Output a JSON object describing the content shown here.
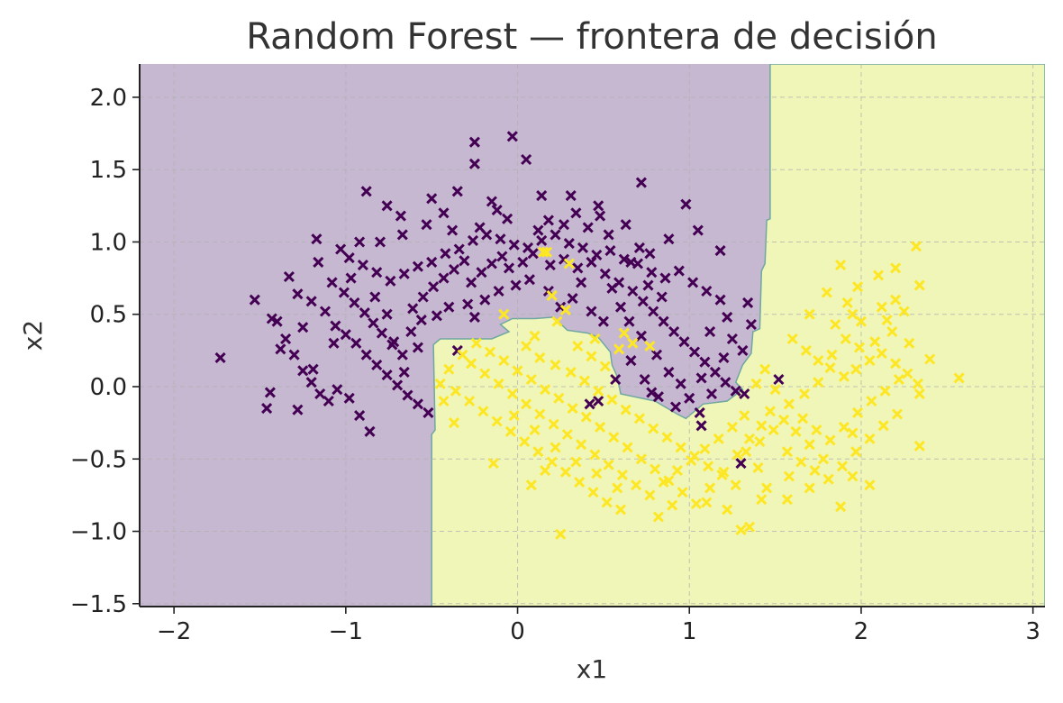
{
  "chart_data": {
    "type": "scatter",
    "title": "Random Forest — frontera de decisión",
    "xlabel": "x1",
    "ylabel": "x2",
    "xlim": [
      -2.2,
      3.07
    ],
    "ylim": [
      -1.52,
      2.23
    ],
    "xticks": [
      -2,
      -1,
      0,
      1,
      2,
      3
    ],
    "yticks": [
      -1.5,
      -1.0,
      -0.5,
      0.0,
      0.5,
      1.0,
      1.5,
      2.0
    ],
    "xtick_labels": [
      "−2",
      "−1",
      "0",
      "1",
      "2",
      "3"
    ],
    "ytick_labels": [
      "−1.5",
      "−1.0",
      "−0.5",
      "0.0",
      "0.5",
      "1.0",
      "1.5",
      "2.0"
    ],
    "grid": true,
    "marker": "x",
    "class_colors": [
      "#440154",
      "#fde725"
    ],
    "region_colors": [
      "#c7b8d1",
      "#f0f6b8"
    ],
    "boundary_color": "#6fa8a0",
    "decision_region_class1": [
      [
        1.47,
        2.23
      ],
      [
        1.47,
        1.16
      ],
      [
        1.45,
        1.15
      ],
      [
        1.44,
        0.85
      ],
      [
        1.42,
        0.8
      ],
      [
        1.41,
        0.4
      ],
      [
        1.37,
        0.38
      ],
      [
        1.36,
        0.23
      ],
      [
        1.31,
        0.15
      ],
      [
        1.27,
        0.03
      ],
      [
        1.31,
        -0.02
      ],
      [
        1.22,
        -0.1
      ],
      [
        1.08,
        -0.12
      ],
      [
        0.98,
        -0.22
      ],
      [
        0.93,
        -0.19
      ],
      [
        0.8,
        -0.1
      ],
      [
        0.6,
        -0.05
      ],
      [
        0.58,
        0.07
      ],
      [
        0.55,
        0.15
      ],
      [
        0.54,
        0.24
      ],
      [
        0.47,
        0.34
      ],
      [
        0.41,
        0.37
      ],
      [
        0.29,
        0.39
      ],
      [
        0.21,
        0.48
      ],
      [
        0.1,
        0.47
      ],
      [
        -0.03,
        0.47
      ],
      [
        -0.1,
        0.43
      ],
      [
        -0.05,
        0.38
      ],
      [
        -0.15,
        0.33
      ],
      [
        -0.45,
        0.33
      ],
      [
        -0.49,
        0.29
      ],
      [
        -0.48,
        -0.3
      ],
      [
        -0.5,
        -0.33
      ],
      [
        -0.5,
        -1.52
      ],
      [
        3.07,
        -1.52
      ],
      [
        3.07,
        2.23
      ]
    ],
    "class0_points": [
      [
        -0.25,
        1.69
      ],
      [
        -0.03,
        1.73
      ],
      [
        -0.25,
        1.54
      ],
      [
        0.05,
        1.57
      ],
      [
        0.72,
        1.41
      ],
      [
        -0.88,
        1.35
      ],
      [
        0.14,
        1.32
      ],
      [
        0.31,
        1.32
      ],
      [
        0.98,
        1.26
      ],
      [
        -0.35,
        1.35
      ],
      [
        -0.5,
        1.3
      ],
      [
        -0.76,
        1.25
      ],
      [
        -0.12,
        1.22
      ],
      [
        0.47,
        1.25
      ],
      [
        -1.17,
        1.02
      ],
      [
        -1.16,
        0.86
      ],
      [
        -1.03,
        0.95
      ],
      [
        -0.98,
        0.89
      ],
      [
        -0.9,
        0.84
      ],
      [
        -0.82,
        0.79
      ],
      [
        -0.74,
        0.73
      ],
      [
        -0.66,
        0.78
      ],
      [
        -0.58,
        0.83
      ],
      [
        -0.5,
        0.86
      ],
      [
        -0.42,
        0.92
      ],
      [
        -0.34,
        0.95
      ],
      [
        -0.26,
        1.01
      ],
      [
        -0.18,
        1.05
      ],
      [
        -0.1,
        1.02
      ],
      [
        -0.02,
        0.98
      ],
      [
        0.06,
        0.96
      ],
      [
        0.14,
        1.01
      ],
      [
        0.22,
        1.05
      ],
      [
        0.3,
        0.99
      ],
      [
        0.38,
        0.96
      ],
      [
        0.46,
        0.91
      ],
      [
        0.54,
        0.94
      ],
      [
        0.62,
        0.88
      ],
      [
        0.7,
        0.85
      ],
      [
        0.78,
        0.79
      ],
      [
        0.86,
        0.75
      ],
      [
        0.94,
        0.8
      ],
      [
        1.02,
        0.72
      ],
      [
        1.1,
        0.66
      ],
      [
        1.18,
        0.6
      ],
      [
        -1.33,
        0.76
      ],
      [
        -1.28,
        0.64
      ],
      [
        -1.2,
        0.59
      ],
      [
        -1.12,
        0.52
      ],
      [
        -1.06,
        0.42
      ],
      [
        -1.0,
        0.36
      ],
      [
        -0.94,
        0.3
      ],
      [
        -0.88,
        0.22
      ],
      [
        -0.82,
        0.15
      ],
      [
        -0.76,
        0.08
      ],
      [
        -0.7,
        0.01
      ],
      [
        -0.64,
        -0.06
      ],
      [
        -0.58,
        -0.12
      ],
      [
        -0.52,
        -0.18
      ],
      [
        -1.4,
        0.45
      ],
      [
        -1.35,
        0.33
      ],
      [
        -1.3,
        0.22
      ],
      [
        -1.25,
        0.11
      ],
      [
        -1.2,
        0.03
      ],
      [
        -1.15,
        -0.05
      ],
      [
        -1.1,
        -0.1
      ],
      [
        -1.05,
        -0.02
      ],
      [
        -0.98,
        -0.08
      ],
      [
        -0.92,
        -0.2
      ],
      [
        -0.86,
        -0.31
      ],
      [
        -1.44,
        -0.04
      ],
      [
        -1.46,
        -0.15
      ],
      [
        -1.28,
        -0.16
      ],
      [
        -1.73,
        0.2
      ],
      [
        -1.53,
        0.6
      ],
      [
        -1.43,
        0.47
      ],
      [
        -1.38,
        0.26
      ],
      [
        -1.25,
        0.41
      ],
      [
        -1.19,
        0.12
      ],
      [
        -1.08,
        0.72
      ],
      [
        -1.01,
        0.65
      ],
      [
        -0.95,
        0.58
      ],
      [
        -0.89,
        0.51
      ],
      [
        -0.84,
        0.44
      ],
      [
        -0.79,
        0.37
      ],
      [
        -0.73,
        0.29
      ],
      [
        -0.67,
        0.22
      ],
      [
        -0.61,
        0.54
      ],
      [
        -0.55,
        0.62
      ],
      [
        -0.49,
        0.69
      ],
      [
        -0.43,
        0.75
      ],
      [
        -0.37,
        0.81
      ],
      [
        -0.31,
        0.87
      ],
      [
        -0.27,
        0.72
      ],
      [
        -0.21,
        0.79
      ],
      [
        -0.15,
        0.85
      ],
      [
        -0.09,
        0.9
      ],
      [
        -0.05,
        0.82
      ],
      [
        0.03,
        0.86
      ],
      [
        0.09,
        0.92
      ],
      [
        0.19,
        0.84
      ],
      [
        0.27,
        0.88
      ],
      [
        0.35,
        0.82
      ],
      [
        0.43,
        0.86
      ],
      [
        0.51,
        0.78
      ],
      [
        0.59,
        0.72
      ],
      [
        0.67,
        0.66
      ],
      [
        0.73,
        0.59
      ],
      [
        0.79,
        0.52
      ],
      [
        0.85,
        0.45
      ],
      [
        0.91,
        0.38
      ],
      [
        0.97,
        0.31
      ],
      [
        1.03,
        0.24
      ],
      [
        1.09,
        0.17
      ],
      [
        1.15,
        0.1
      ],
      [
        1.21,
        0.03
      ],
      [
        1.27,
        -0.03
      ],
      [
        1.32,
        -0.05
      ],
      [
        1.25,
        0.33
      ],
      [
        1.31,
        0.25
      ],
      [
        1.36,
        0.43
      ],
      [
        1.34,
        0.58
      ],
      [
        1.18,
        0.94
      ],
      [
        1.05,
        1.08
      ],
      [
        0.88,
        1.02
      ],
      [
        0.63,
        1.12
      ],
      [
        0.48,
        1.18
      ],
      [
        0.34,
        1.2
      ],
      [
        0.18,
        1.15
      ],
      [
        -0.06,
        1.16
      ],
      [
        -0.22,
        1.1
      ],
      [
        -0.38,
        1.08
      ],
      [
        -0.53,
        1.12
      ],
      [
        -0.67,
        1.05
      ],
      [
        -0.8,
        1.0
      ],
      [
        -0.92,
        1.0
      ],
      [
        -0.62,
        0.38
      ],
      [
        -0.58,
        0.27
      ],
      [
        -0.66,
        0.1
      ],
      [
        -0.72,
        0.31
      ],
      [
        -0.83,
        0.62
      ],
      [
        -0.76,
        0.5
      ],
      [
        0.65,
        0.45
      ],
      [
        0.72,
        0.35
      ],
      [
        0.81,
        0.22
      ],
      [
        0.88,
        0.1
      ],
      [
        0.95,
        0.02
      ],
      [
        1.0,
        -0.08
      ],
      [
        1.06,
        -0.18
      ],
      [
        0.92,
        -0.14
      ],
      [
        0.82,
        -0.07
      ],
      [
        0.42,
        -0.12
      ],
      [
        0.47,
        -0.1
      ],
      [
        0.57,
        0.05
      ],
      [
        0.66,
        0.18
      ],
      [
        0.74,
        0.05
      ],
      [
        0.78,
        -0.04
      ],
      [
        1.13,
        -0.05
      ],
      [
        1.07,
        0.06
      ],
      [
        1.3,
        -0.53
      ],
      [
        1.07,
        -0.27
      ],
      [
        1.52,
        0.05
      ],
      [
        0.5,
        0.45
      ],
      [
        0.43,
        0.52
      ],
      [
        0.55,
        0.68
      ],
      [
        0.66,
        0.86
      ],
      [
        0.71,
        0.96
      ],
      [
        0.77,
        0.92
      ],
      [
        0.84,
        0.62
      ],
      [
        0.76,
        0.7
      ],
      [
        0.6,
        0.55
      ],
      [
        0.37,
        0.72
      ],
      [
        0.18,
        0.66
      ],
      [
        0.07,
        0.74
      ],
      [
        -0.01,
        0.7
      ],
      [
        -0.11,
        0.66
      ],
      [
        -0.19,
        0.6
      ],
      [
        -0.29,
        0.57
      ],
      [
        -0.4,
        0.55
      ],
      [
        -0.47,
        0.49
      ],
      [
        -0.56,
        0.46
      ],
      [
        -0.25,
        0.48
      ],
      [
        0.25,
        0.55
      ],
      [
        0.32,
        0.61
      ],
      [
        1.22,
        0.48
      ],
      [
        1.12,
        0.38
      ],
      [
        1.2,
        0.2
      ],
      [
        0.53,
        1.05
      ],
      [
        0.41,
        1.1
      ],
      [
        0.27,
        1.12
      ],
      [
        0.12,
        1.08
      ],
      [
        -0.15,
        1.28
      ],
      [
        -0.43,
        1.2
      ],
      [
        -0.68,
        1.18
      ],
      [
        -0.97,
        0.75
      ],
      [
        -1.07,
        0.3
      ],
      [
        -0.35,
        0.25
      ]
    ],
    "class1_points": [
      [
        2.32,
        0.97
      ],
      [
        1.88,
        0.84
      ],
      [
        2.2,
        0.82
      ],
      [
        2.1,
        0.77
      ],
      [
        1.98,
        0.69
      ],
      [
        2.34,
        0.7
      ],
      [
        2.2,
        0.6
      ],
      [
        2.12,
        0.55
      ],
      [
        1.95,
        0.5
      ],
      [
        1.85,
        0.43
      ],
      [
        1.7,
        0.5
      ],
      [
        1.6,
        0.33
      ],
      [
        1.68,
        0.25
      ],
      [
        1.75,
        0.18
      ],
      [
        1.82,
        0.13
      ],
      [
        1.9,
        0.07
      ],
      [
        1.97,
        0.12
      ],
      [
        2.05,
        0.18
      ],
      [
        2.12,
        0.23
      ],
      [
        2.2,
        0.16
      ],
      [
        2.27,
        0.09
      ],
      [
        2.33,
        0.02
      ],
      [
        2.4,
        0.19
      ],
      [
        2.57,
        0.06
      ],
      [
        2.34,
        -0.05
      ],
      [
        2.34,
        -0.41
      ],
      [
        2.05,
        -0.68
      ],
      [
        1.88,
        -0.83
      ],
      [
        1.95,
        -0.62
      ],
      [
        1.78,
        -0.5
      ],
      [
        1.7,
        -0.4
      ],
      [
        1.62,
        -0.31
      ],
      [
        1.55,
        -0.23
      ],
      [
        1.47,
        -0.17
      ],
      [
        1.42,
        -0.27
      ],
      [
        1.35,
        -0.36
      ],
      [
        1.28,
        -0.47
      ],
      [
        1.2,
        -0.59
      ],
      [
        1.12,
        -0.7
      ],
      [
        1.04,
        -0.81
      ],
      [
        0.96,
        -0.73
      ],
      [
        0.88,
        -0.65
      ],
      [
        0.8,
        -0.57
      ],
      [
        0.72,
        -0.5
      ],
      [
        0.64,
        -0.42
      ],
      [
        0.56,
        -0.35
      ],
      [
        0.48,
        -0.28
      ],
      [
        0.4,
        -0.21
      ],
      [
        0.32,
        -0.15
      ],
      [
        0.24,
        -0.08
      ],
      [
        0.16,
        -0.02
      ],
      [
        0.08,
        0.05
      ],
      [
        0.0,
        0.11
      ],
      [
        -0.08,
        0.18
      ],
      [
        -0.16,
        0.24
      ],
      [
        -0.24,
        0.3
      ],
      [
        -0.32,
        0.22
      ],
      [
        -0.4,
        0.12
      ],
      [
        -0.45,
        0.02
      ],
      [
        -0.36,
        -0.03
      ],
      [
        -0.28,
        -0.1
      ],
      [
        -0.2,
        -0.17
      ],
      [
        -0.12,
        -0.24
      ],
      [
        -0.04,
        -0.31
      ],
      [
        0.04,
        -0.38
      ],
      [
        0.12,
        -0.45
      ],
      [
        0.2,
        -0.52
      ],
      [
        0.28,
        -0.59
      ],
      [
        0.36,
        -0.66
      ],
      [
        0.44,
        -0.73
      ],
      [
        0.52,
        -0.8
      ],
      [
        0.6,
        -0.85
      ],
      [
        0.25,
        -1.02
      ],
      [
        1.3,
        -0.99
      ],
      [
        1.35,
        -0.97
      ],
      [
        1.57,
        -0.78
      ],
      [
        1.45,
        -0.7
      ],
      [
        1.4,
        -0.56
      ],
      [
        1.32,
        -0.2
      ],
      [
        1.39,
        0.02
      ],
      [
        1.44,
        0.12
      ],
      [
        1.5,
        -0.02
      ],
      [
        1.58,
        -0.12
      ],
      [
        1.66,
        -0.22
      ],
      [
        1.74,
        -0.3
      ],
      [
        1.82,
        -0.37
      ],
      [
        1.9,
        -0.28
      ],
      [
        1.98,
        -0.18
      ],
      [
        2.06,
        -0.1
      ],
      [
        2.14,
        -0.03
      ],
      [
        2.22,
        0.05
      ],
      [
        2.28,
        0.3
      ],
      [
        2.18,
        0.38
      ],
      [
        2.08,
        0.31
      ],
      [
        1.99,
        0.27
      ],
      [
        1.91,
        0.33
      ],
      [
        1.83,
        0.22
      ],
      [
        1.75,
        0.03
      ],
      [
        1.67,
        -0.05
      ],
      [
        -0.08,
        0.5
      ],
      [
        0.15,
        0.93
      ],
      [
        0.17,
        0.93
      ],
      [
        0.3,
        0.85
      ],
      [
        0.2,
        0.63
      ],
      [
        0.28,
        0.53
      ],
      [
        0.23,
        0.45
      ],
      [
        0.1,
        0.35
      ],
      [
        0.05,
        0.28
      ],
      [
        0.13,
        0.2
      ],
      [
        0.22,
        0.15
      ],
      [
        0.31,
        0.1
      ],
      [
        0.39,
        0.04
      ],
      [
        0.47,
        -0.03
      ],
      [
        0.55,
        -0.09
      ],
      [
        0.63,
        -0.16
      ],
      [
        0.71,
        -0.22
      ],
      [
        0.79,
        -0.29
      ],
      [
        0.87,
        -0.35
      ],
      [
        0.95,
        -0.42
      ],
      [
        1.03,
        -0.48
      ],
      [
        1.11,
        -0.55
      ],
      [
        1.19,
        -0.61
      ],
      [
        1.27,
        -0.68
      ],
      [
        0.35,
        0.28
      ],
      [
        0.43,
        0.21
      ],
      [
        0.51,
        0.14
      ],
      [
        0.59,
        0.26
      ],
      [
        0.67,
        0.3
      ],
      [
        0.77,
        0.28
      ],
      [
        0.62,
        0.37
      ],
      [
        0.45,
        0.33
      ],
      [
        -0.27,
        0.16
      ],
      [
        -0.19,
        0.09
      ],
      [
        -0.11,
        0.02
      ],
      [
        -0.03,
        -0.05
      ],
      [
        0.05,
        -0.12
      ],
      [
        0.13,
        -0.19
      ],
      [
        0.21,
        -0.26
      ],
      [
        0.29,
        -0.33
      ],
      [
        0.37,
        -0.4
      ],
      [
        0.45,
        -0.47
      ],
      [
        0.53,
        -0.54
      ],
      [
        0.61,
        -0.61
      ],
      [
        0.69,
        -0.68
      ],
      [
        0.77,
        -0.75
      ],
      [
        0.85,
        -0.66
      ],
      [
        0.93,
        -0.58
      ],
      [
        1.01,
        -0.51
      ],
      [
        1.09,
        -0.43
      ],
      [
        1.17,
        -0.36
      ],
      [
        1.25,
        -0.28
      ],
      [
        1.33,
        -0.45
      ],
      [
        1.41,
        -0.38
      ],
      [
        1.49,
        -0.3
      ],
      [
        1.57,
        -0.45
      ],
      [
        1.65,
        -0.52
      ],
      [
        1.73,
        -0.58
      ],
      [
        1.81,
        -0.64
      ],
      [
        1.89,
        -0.55
      ],
      [
        1.97,
        -0.45
      ],
      [
        2.05,
        -0.36
      ],
      [
        2.13,
        -0.27
      ],
      [
        2.21,
        -0.19
      ],
      [
        0.58,
        -0.7
      ],
      [
        0.46,
        -0.6
      ],
      [
        0.34,
        -0.52
      ],
      [
        0.22,
        -0.42
      ],
      [
        0.1,
        -0.3
      ],
      [
        -0.02,
        -0.2
      ],
      [
        -0.14,
        -0.53
      ],
      [
        -0.37,
        -0.25
      ],
      [
        -0.43,
        -0.1
      ],
      [
        0.08,
        -0.68
      ],
      [
        0.16,
        -0.58
      ],
      [
        0.82,
        -0.9
      ],
      [
        0.9,
        -0.82
      ],
      [
        1.1,
        -0.8
      ],
      [
        1.22,
        -0.85
      ],
      [
        1.42,
        -0.78
      ],
      [
        1.58,
        -0.62
      ],
      [
        1.7,
        -0.7
      ],
      [
        1.95,
        -0.32
      ],
      [
        2.0,
        0.45
      ],
      [
        1.92,
        0.58
      ],
      [
        1.8,
        0.65
      ],
      [
        2.25,
        0.52
      ],
      [
        2.15,
        0.46
      ]
    ]
  }
}
